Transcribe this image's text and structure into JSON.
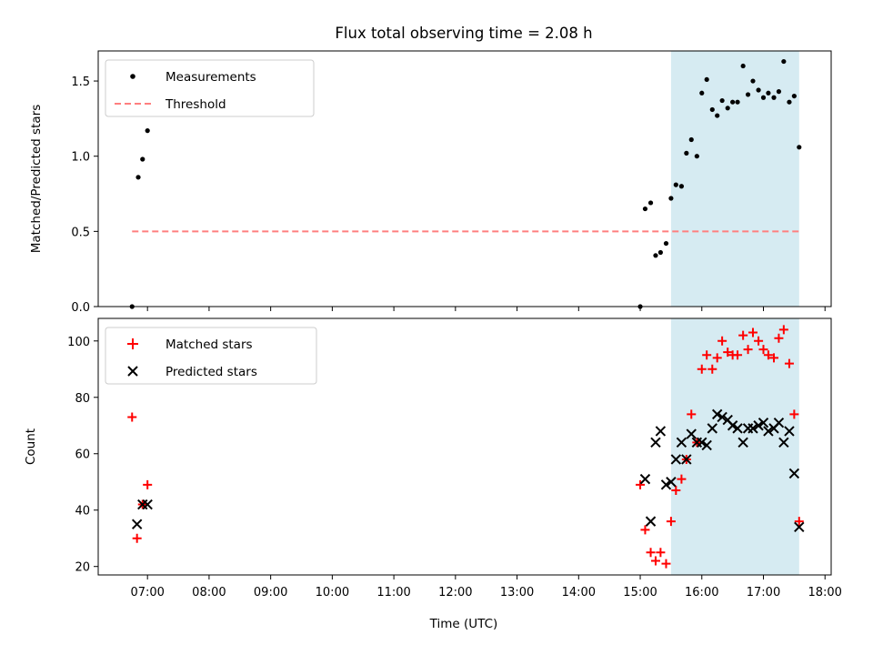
{
  "title": "Flux total observing time = 2.08 h",
  "xlabel": "Time (UTC)",
  "xticks": [
    "07:00",
    "08:00",
    "09:00",
    "10:00",
    "11:00",
    "12:00",
    "13:00",
    "14:00",
    "15:00",
    "16:00",
    "17:00",
    "18:00"
  ],
  "chart_data": [
    {
      "type": "scatter",
      "ylabel": "Matched/Predicted stars",
      "xlim": [
        6.2,
        18.1
      ],
      "ylim": [
        0,
        1.7
      ],
      "yticks": [
        "0.0",
        "0.5",
        "1.0",
        "1.5"
      ],
      "legend_position": "top-left",
      "highlight_band": {
        "x_start": 15.5,
        "x_end": 17.58,
        "color": "#add8e6"
      },
      "series": [
        {
          "name": "Measurements",
          "color": "#000000",
          "points": [
            [
              6.75,
              0.0
            ],
            [
              6.85,
              0.86
            ],
            [
              6.92,
              0.98
            ],
            [
              7.0,
              1.17
            ],
            [
              15.0,
              0.0
            ],
            [
              15.08,
              0.65
            ],
            [
              15.17,
              0.69
            ],
            [
              15.25,
              0.34
            ],
            [
              15.33,
              0.36
            ],
            [
              15.42,
              0.42
            ],
            [
              15.5,
              0.72
            ],
            [
              15.58,
              0.81
            ],
            [
              15.67,
              0.8
            ],
            [
              15.75,
              1.02
            ],
            [
              15.83,
              1.11
            ],
            [
              15.92,
              1.0
            ],
            [
              16.0,
              1.42
            ],
            [
              16.08,
              1.51
            ],
            [
              16.17,
              1.31
            ],
            [
              16.25,
              1.27
            ],
            [
              16.33,
              1.37
            ],
            [
              16.42,
              1.32
            ],
            [
              16.5,
              1.36
            ],
            [
              16.58,
              1.36
            ],
            [
              16.67,
              1.6
            ],
            [
              16.75,
              1.41
            ],
            [
              16.83,
              1.5
            ],
            [
              16.92,
              1.44
            ],
            [
              17.0,
              1.39
            ],
            [
              17.08,
              1.42
            ],
            [
              17.17,
              1.39
            ],
            [
              17.25,
              1.43
            ],
            [
              17.33,
              1.63
            ],
            [
              17.42,
              1.36
            ],
            [
              17.5,
              1.4
            ],
            [
              17.58,
              1.06
            ]
          ]
        },
        {
          "name": "Threshold",
          "color": "#ff7f7f",
          "style": "dashed",
          "points": [
            [
              6.75,
              0.5
            ],
            [
              17.58,
              0.5
            ]
          ]
        }
      ]
    },
    {
      "type": "scatter",
      "ylabel": "Count",
      "xlim": [
        6.2,
        18.1
      ],
      "ylim": [
        17,
        108
      ],
      "yticks": [
        "20",
        "40",
        "60",
        "80",
        "100"
      ],
      "legend_position": "top-left",
      "highlight_band": {
        "x_start": 15.5,
        "x_end": 17.58,
        "color": "#add8e6"
      },
      "series": [
        {
          "name": "Matched stars",
          "color": "#ff0000",
          "marker": "plus",
          "points": [
            [
              6.75,
              73
            ],
            [
              6.83,
              30
            ],
            [
              6.92,
              42
            ],
            [
              7.0,
              49
            ],
            [
              15.0,
              49
            ],
            [
              15.08,
              33
            ],
            [
              15.17,
              25
            ],
            [
              15.25,
              22
            ],
            [
              15.33,
              25
            ],
            [
              15.42,
              21
            ],
            [
              15.5,
              36
            ],
            [
              15.58,
              47
            ],
            [
              15.67,
              51
            ],
            [
              15.75,
              58
            ],
            [
              15.83,
              74
            ],
            [
              15.92,
              64
            ],
            [
              16.0,
              90
            ],
            [
              16.08,
              95
            ],
            [
              16.17,
              90
            ],
            [
              16.25,
              94
            ],
            [
              16.33,
              100
            ],
            [
              16.42,
              96
            ],
            [
              16.5,
              95
            ],
            [
              16.58,
              95
            ],
            [
              16.67,
              102
            ],
            [
              16.75,
              97
            ],
            [
              16.83,
              103
            ],
            [
              16.92,
              100
            ],
            [
              17.0,
              97
            ],
            [
              17.08,
              95
            ],
            [
              17.17,
              94
            ],
            [
              17.25,
              101
            ],
            [
              17.33,
              104
            ],
            [
              17.42,
              92
            ],
            [
              17.5,
              74
            ],
            [
              17.58,
              36
            ]
          ]
        },
        {
          "name": "Predicted stars",
          "color": "#000000",
          "marker": "x",
          "points": [
            [
              6.83,
              35
            ],
            [
              6.92,
              42
            ],
            [
              7.0,
              42
            ],
            [
              15.08,
              51
            ],
            [
              15.17,
              36
            ],
            [
              15.25,
              64
            ],
            [
              15.33,
              68
            ],
            [
              15.42,
              49
            ],
            [
              15.5,
              50
            ],
            [
              15.58,
              58
            ],
            [
              15.67,
              64
            ],
            [
              15.75,
              58
            ],
            [
              15.83,
              67
            ],
            [
              15.92,
              64
            ],
            [
              16.0,
              64
            ],
            [
              16.08,
              63
            ],
            [
              16.17,
              69
            ],
            [
              16.25,
              74
            ],
            [
              16.33,
              73
            ],
            [
              16.42,
              72
            ],
            [
              16.5,
              70
            ],
            [
              16.58,
              69
            ],
            [
              16.67,
              64
            ],
            [
              16.75,
              69
            ],
            [
              16.83,
              69
            ],
            [
              16.92,
              70
            ],
            [
              17.0,
              71
            ],
            [
              17.08,
              68
            ],
            [
              17.17,
              69
            ],
            [
              17.25,
              71
            ],
            [
              17.33,
              64
            ],
            [
              17.42,
              68
            ],
            [
              17.5,
              53
            ],
            [
              17.58,
              34
            ]
          ]
        }
      ]
    }
  ]
}
